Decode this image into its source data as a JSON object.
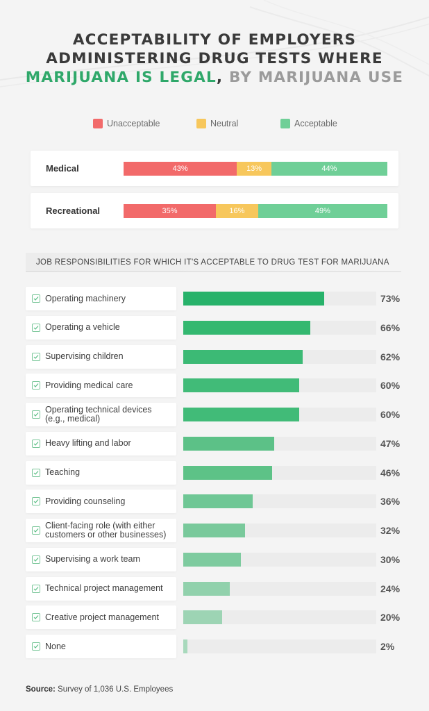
{
  "title": {
    "line1": "ACCEPTABILITY OF EMPLOYERS",
    "line2": "ADMINISTERING DRUG TESTS WHERE",
    "line3_highlight": "MARIJUANA IS LEGAL",
    "line3_sep": ",",
    "line3_rest": " BY MARIJUANA USE"
  },
  "colors": {
    "unacceptable": "#f26a6a",
    "neutral": "#f7c75c",
    "acceptable": "#6fcf97",
    "title_green": "#2fa86a"
  },
  "legend": [
    {
      "key": "unacceptable",
      "label": "Unacceptable"
    },
    {
      "key": "neutral",
      "label": "Neutral"
    },
    {
      "key": "acceptable",
      "label": "Acceptable"
    }
  ],
  "subheading": "JOB RESPONSIBILITIES FOR WHICH IT'S ACCEPTABLE TO DRUG TEST FOR MARIJUANA",
  "source": {
    "label": "Source:",
    "text": " Survey of 1,036 U.S. Employees"
  },
  "chart_data": [
    {
      "type": "bar",
      "stacked": true,
      "orientation": "horizontal",
      "categories": [
        "Medical",
        "Recreational"
      ],
      "series": [
        {
          "name": "Unacceptable",
          "values": [
            43,
            35
          ],
          "labels": [
            "43%",
            "35%"
          ]
        },
        {
          "name": "Neutral",
          "values": [
            13,
            16
          ],
          "labels": [
            "13%",
            "16%"
          ]
        },
        {
          "name": "Acceptable",
          "values": [
            44,
            49
          ],
          "labels": [
            "44%",
            "49%"
          ]
        }
      ]
    },
    {
      "type": "bar",
      "orientation": "horizontal",
      "title": "JOB RESPONSIBILITIES FOR WHICH IT'S ACCEPTABLE TO DRUG TEST FOR MARIJUANA",
      "xlim": [
        0,
        100
      ],
      "categories": [
        [
          "Operating machinery"
        ],
        [
          "Operating a vehicle"
        ],
        [
          "Supervising children"
        ],
        [
          "Providing medical care"
        ],
        [
          "Operating technical devices",
          "(e.g., medical)"
        ],
        [
          "Heavy lifting and labor"
        ],
        [
          "Teaching"
        ],
        [
          "Providing counseling"
        ],
        [
          "Client-facing role (with either",
          "customers or other businesses)"
        ],
        [
          "Supervising a work team"
        ],
        [
          "Technical project management"
        ],
        [
          "Creative project management"
        ],
        [
          "None"
        ]
      ],
      "values": [
        73,
        66,
        62,
        60,
        60,
        47,
        46,
        36,
        32,
        30,
        24,
        20,
        2
      ],
      "labels": [
        "73%",
        "66%",
        "62%",
        "60%",
        "60%",
        "47%",
        "46%",
        "36%",
        "32%",
        "30%",
        "24%",
        "20%",
        "2%"
      ]
    }
  ]
}
